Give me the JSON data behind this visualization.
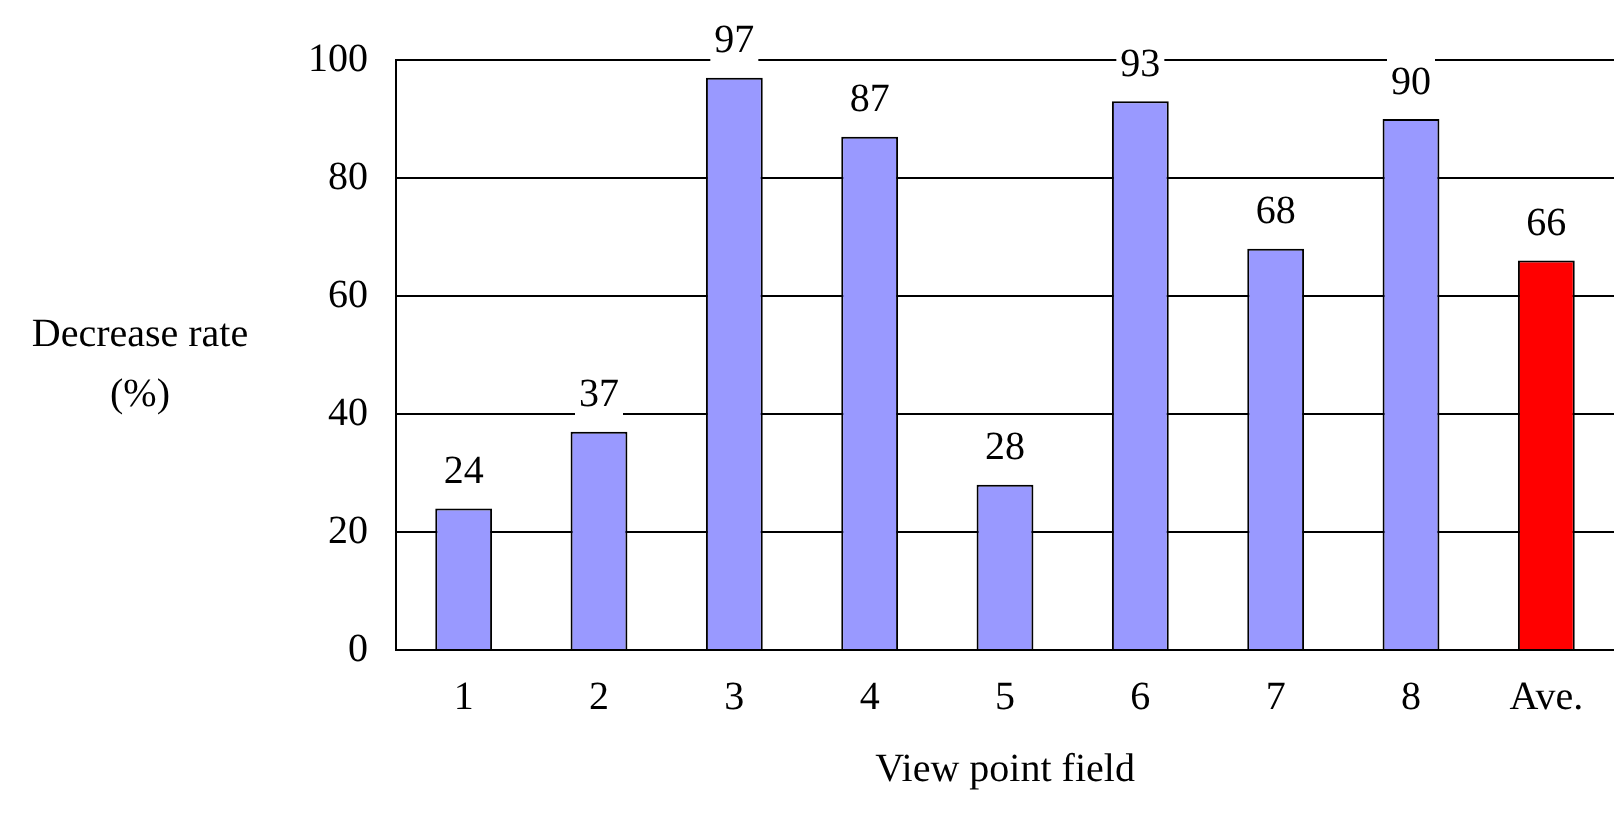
{
  "chart_data": {
    "type": "bar",
    "xlabel": "View point field",
    "ylabel": "Decrease rate (%)",
    "categories": [
      "1",
      "2",
      "3",
      "4",
      "5",
      "6",
      "7",
      "8",
      "Ave."
    ],
    "values": [
      24,
      37,
      97,
      87,
      28,
      93,
      68,
      90,
      66
    ],
    "colors": [
      "#9999ff",
      "#9999ff",
      "#9999ff",
      "#9999ff",
      "#9999ff",
      "#9999ff",
      "#9999ff",
      "#9999ff",
      "#ff0000"
    ],
    "ylim": [
      0,
      100
    ],
    "yticks": [
      0,
      20,
      40,
      60,
      80,
      100
    ],
    "grid": "y",
    "data_labels": true,
    "legend": false
  }
}
